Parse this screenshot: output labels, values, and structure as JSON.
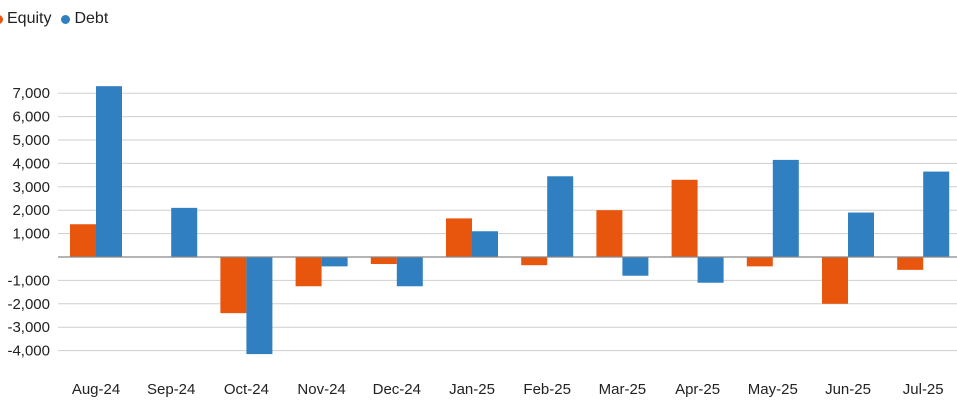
{
  "colors": {
    "equity": "#e8550d",
    "debt": "#2f7fc1",
    "grid": "#cfcfcf",
    "axis": "#888888",
    "text": "#222222"
  },
  "legend": {
    "equity_label": "Equity",
    "debt_label": "Debt"
  },
  "chart_data": {
    "type": "bar",
    "title": "",
    "xlabel": "",
    "ylabel": "",
    "legend_position": "top-left",
    "grid": true,
    "ylim": [
      -4500,
      7500
    ],
    "yticks": [
      7000,
      6000,
      5000,
      4000,
      3000,
      2000,
      1000,
      -1000,
      -2000,
      -3000,
      -4000
    ],
    "ytick_labels": [
      "7,000",
      "6,000",
      "5,000",
      "4,000",
      "3,000",
      "2,000",
      "1,000",
      "-1,000",
      "-2,000",
      "-3,000",
      "-4,000"
    ],
    "categories": [
      "Aug-24",
      "Sep-24",
      "Oct-24",
      "Nov-24",
      "Dec-24",
      "Jan-25",
      "Feb-25",
      "Mar-25",
      "Apr-25",
      "May-25",
      "Jun-25",
      "Jul-25"
    ],
    "series": [
      {
        "name": "Equity",
        "color": "#e8550d",
        "values": [
          1400,
          0,
          -2400,
          -1250,
          -300,
          1650,
          -350,
          2000,
          3300,
          -400,
          -2000,
          -550
        ]
      },
      {
        "name": "Debt",
        "color": "#2f7fc1",
        "values": [
          7300,
          2100,
          -4150,
          -400,
          -1250,
          1100,
          3450,
          -800,
          -1100,
          4150,
          1900,
          3650
        ]
      }
    ]
  }
}
